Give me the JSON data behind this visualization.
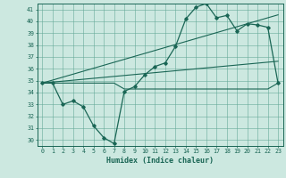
{
  "title": "",
  "xlabel": "Humidex (Indice chaleur)",
  "ylabel": "",
  "background_color": "#cce8e0",
  "grid_color": "#66aa99",
  "line_color": "#1a6655",
  "xlim": [
    -0.5,
    23.5
  ],
  "ylim": [
    29.5,
    41.5
  ],
  "x": [
    0,
    1,
    2,
    3,
    4,
    5,
    6,
    7,
    8,
    9,
    10,
    11,
    12,
    13,
    14,
    15,
    16,
    17,
    18,
    19,
    20,
    21,
    22,
    23
  ],
  "y_main": [
    34.8,
    34.8,
    33.0,
    33.3,
    32.8,
    31.2,
    30.2,
    29.7,
    34.1,
    34.5,
    35.5,
    36.2,
    36.5,
    37.9,
    40.2,
    41.2,
    41.5,
    40.3,
    40.5,
    39.2,
    39.8,
    39.7,
    39.5,
    34.8
  ],
  "y_flat": [
    34.8,
    34.8,
    34.8,
    34.8,
    34.8,
    34.8,
    34.8,
    34.8,
    34.3,
    34.3,
    34.3,
    34.3,
    34.3,
    34.3,
    34.3,
    34.3,
    34.3,
    34.3,
    34.3,
    34.3,
    34.3,
    34.3,
    34.3,
    34.8
  ],
  "y_trend_high": [
    34.8,
    35.05,
    35.3,
    35.55,
    35.8,
    36.05,
    36.3,
    36.55,
    36.8,
    37.05,
    37.3,
    37.55,
    37.8,
    38.05,
    38.3,
    38.55,
    38.8,
    39.05,
    39.3,
    39.55,
    39.8,
    40.05,
    40.3,
    40.55
  ],
  "y_trend_low": [
    34.8,
    34.88,
    34.96,
    35.04,
    35.12,
    35.2,
    35.28,
    35.36,
    35.44,
    35.52,
    35.6,
    35.68,
    35.76,
    35.84,
    35.92,
    36.0,
    36.08,
    36.16,
    36.24,
    36.32,
    36.4,
    36.48,
    36.56,
    36.64
  ]
}
